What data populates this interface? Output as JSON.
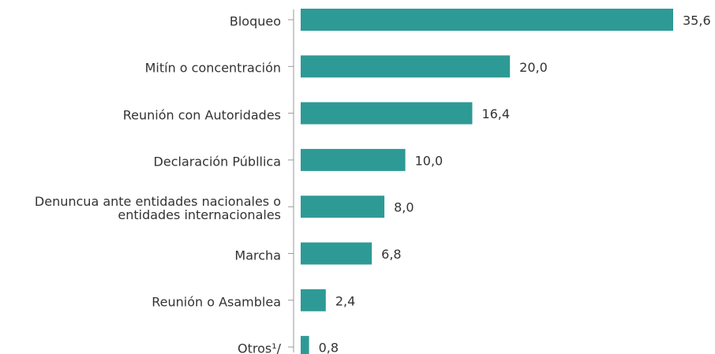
{
  "chart_data": {
    "type": "barh",
    "categories": [
      "Bloqueo",
      "Mitín o concentración",
      "Reunión con Autoridades",
      "Declaración Públlica",
      "Denuncua ante entidades nacionales o\nentidades internacionales",
      "Marcha",
      "Reunión o Asamblea",
      "Otros¹/"
    ],
    "values": [
      35.6,
      20.0,
      16.4,
      10.0,
      8.0,
      6.8,
      2.4,
      0.8
    ],
    "value_labels": [
      "35,6",
      "20,0",
      "16,4",
      "10,0",
      "8,0",
      "6,8",
      "2,4",
      "0,8"
    ],
    "color": "#2e9a96"
  }
}
